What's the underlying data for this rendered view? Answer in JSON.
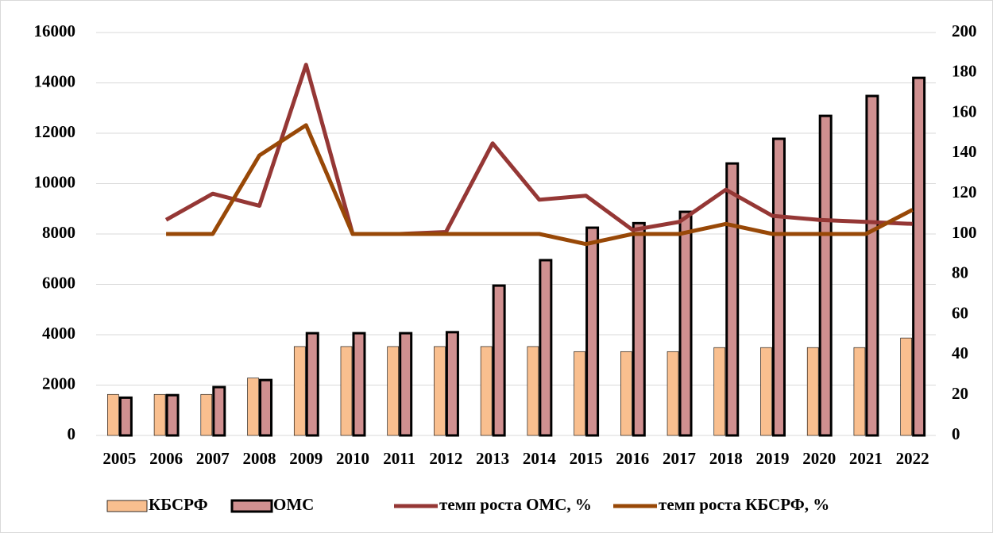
{
  "chart_data": {
    "type": "bar",
    "categories": [
      "2005",
      "2006",
      "2007",
      "2008",
      "2009",
      "2010",
      "2011",
      "2012",
      "2013",
      "2014",
      "2015",
      "2016",
      "2017",
      "2018",
      "2019",
      "2020",
      "2021",
      "2022"
    ],
    "series": [
      {
        "name": "КБСРФ",
        "type": "bar",
        "color": "#f9bf8f",
        "values": [
          1630,
          1630,
          1630,
          2280,
          3530,
          3530,
          3530,
          3530,
          3530,
          3530,
          3330,
          3330,
          3330,
          3490,
          3490,
          3490,
          3490,
          3870
        ]
      },
      {
        "name": "ОМС",
        "type": "bar",
        "color": "#d09090",
        "values": [
          1500,
          1600,
          1920,
          2200,
          4060,
          4060,
          4060,
          4100,
          5950,
          6960,
          8250,
          8430,
          8880,
          10800,
          11780,
          12690,
          13480,
          14200
        ]
      },
      {
        "name": "темп роста ОМС, %",
        "type": "line",
        "axis": "y2",
        "color": "#953735",
        "values": [
          null,
          107,
          120,
          114,
          184,
          100,
          100,
          101,
          145,
          117,
          119,
          102,
          106,
          122,
          109,
          107,
          106,
          105
        ]
      },
      {
        "name": "темп роста КБСРФ, %",
        "type": "line",
        "axis": "y2",
        "color": "#984807",
        "values": [
          null,
          100,
          100,
          139,
          154,
          100,
          100,
          100,
          100,
          100,
          95,
          100,
          100,
          105,
          100,
          100,
          100,
          112
        ]
      }
    ],
    "ylim": [
      0,
      16000
    ],
    "yticks": [
      0,
      2000,
      4000,
      6000,
      8000,
      10000,
      12000,
      14000,
      16000
    ],
    "y2lim": [
      0,
      200
    ],
    "y2ticks": [
      0,
      20,
      40,
      60,
      80,
      100,
      120,
      140,
      160,
      180,
      200
    ],
    "grid": true,
    "legend": "bottom"
  }
}
